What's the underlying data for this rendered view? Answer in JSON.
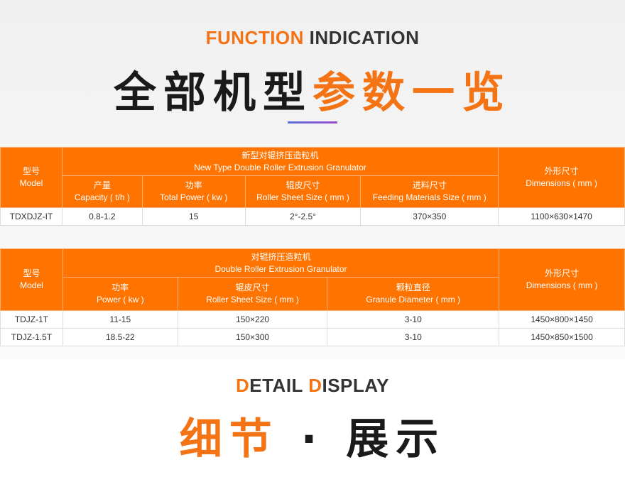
{
  "function_title": {
    "accent": "FUNCTION",
    "rest": " INDICATION"
  },
  "params_title": {
    "dark": "全部机型",
    "accent": "参数一览"
  },
  "table1": {
    "model_cn": "型号",
    "model_en": "Model",
    "group_cn": "新型对辊挤压造粒机",
    "group_en": "New Type Double Roller Extrusion Granulator",
    "columns": [
      {
        "cn": "产量",
        "en": "Capacity ( t/h )"
      },
      {
        "cn": "功率",
        "en": "Total Power ( kw )"
      },
      {
        "cn": "辊皮尺寸",
        "en": "Roller Sheet Size ( mm )"
      },
      {
        "cn": "进料尺寸",
        "en": "Feeding Materials Size ( mm )"
      }
    ],
    "dim_cn": "外形尺寸",
    "dim_en": "Dimensions ( mm )",
    "rows": [
      [
        "TDXDJZ-IT",
        "0.8-1.2",
        "15",
        "2°-2.5°",
        "370×350",
        "1100×630×1470"
      ]
    ]
  },
  "table2": {
    "model_cn": "型号",
    "model_en": "Model",
    "group_cn": "对辊挤压造粒机",
    "group_en": "Double Roller Extrusion Granulator",
    "columns": [
      {
        "cn": "功率",
        "en": "Power ( kw )"
      },
      {
        "cn": "辊皮尺寸",
        "en": "Roller Sheet Size ( mm )"
      },
      {
        "cn": "颗粒直径",
        "en": "Granule Diameter ( mm )"
      }
    ],
    "dim_cn": "外形尺寸",
    "dim_en": "Dimensions ( mm )",
    "rows": [
      [
        "TDJZ-1T",
        "11-15",
        "150×220",
        "3-10",
        "1450×800×1450"
      ],
      [
        "TDJZ-1.5T",
        "18.5-22",
        "150×300",
        "3-10",
        "1450×850×1500"
      ]
    ]
  },
  "detail_title": {
    "d1": "D",
    "etail": "ETAIL ",
    "d2": "D",
    "isplay": "ISPLAY"
  },
  "detail_cn": {
    "accent": "细节",
    "sep": " · ",
    "dark": "展示"
  },
  "colors": {
    "accent": "#ff7300",
    "text": "#333333"
  }
}
